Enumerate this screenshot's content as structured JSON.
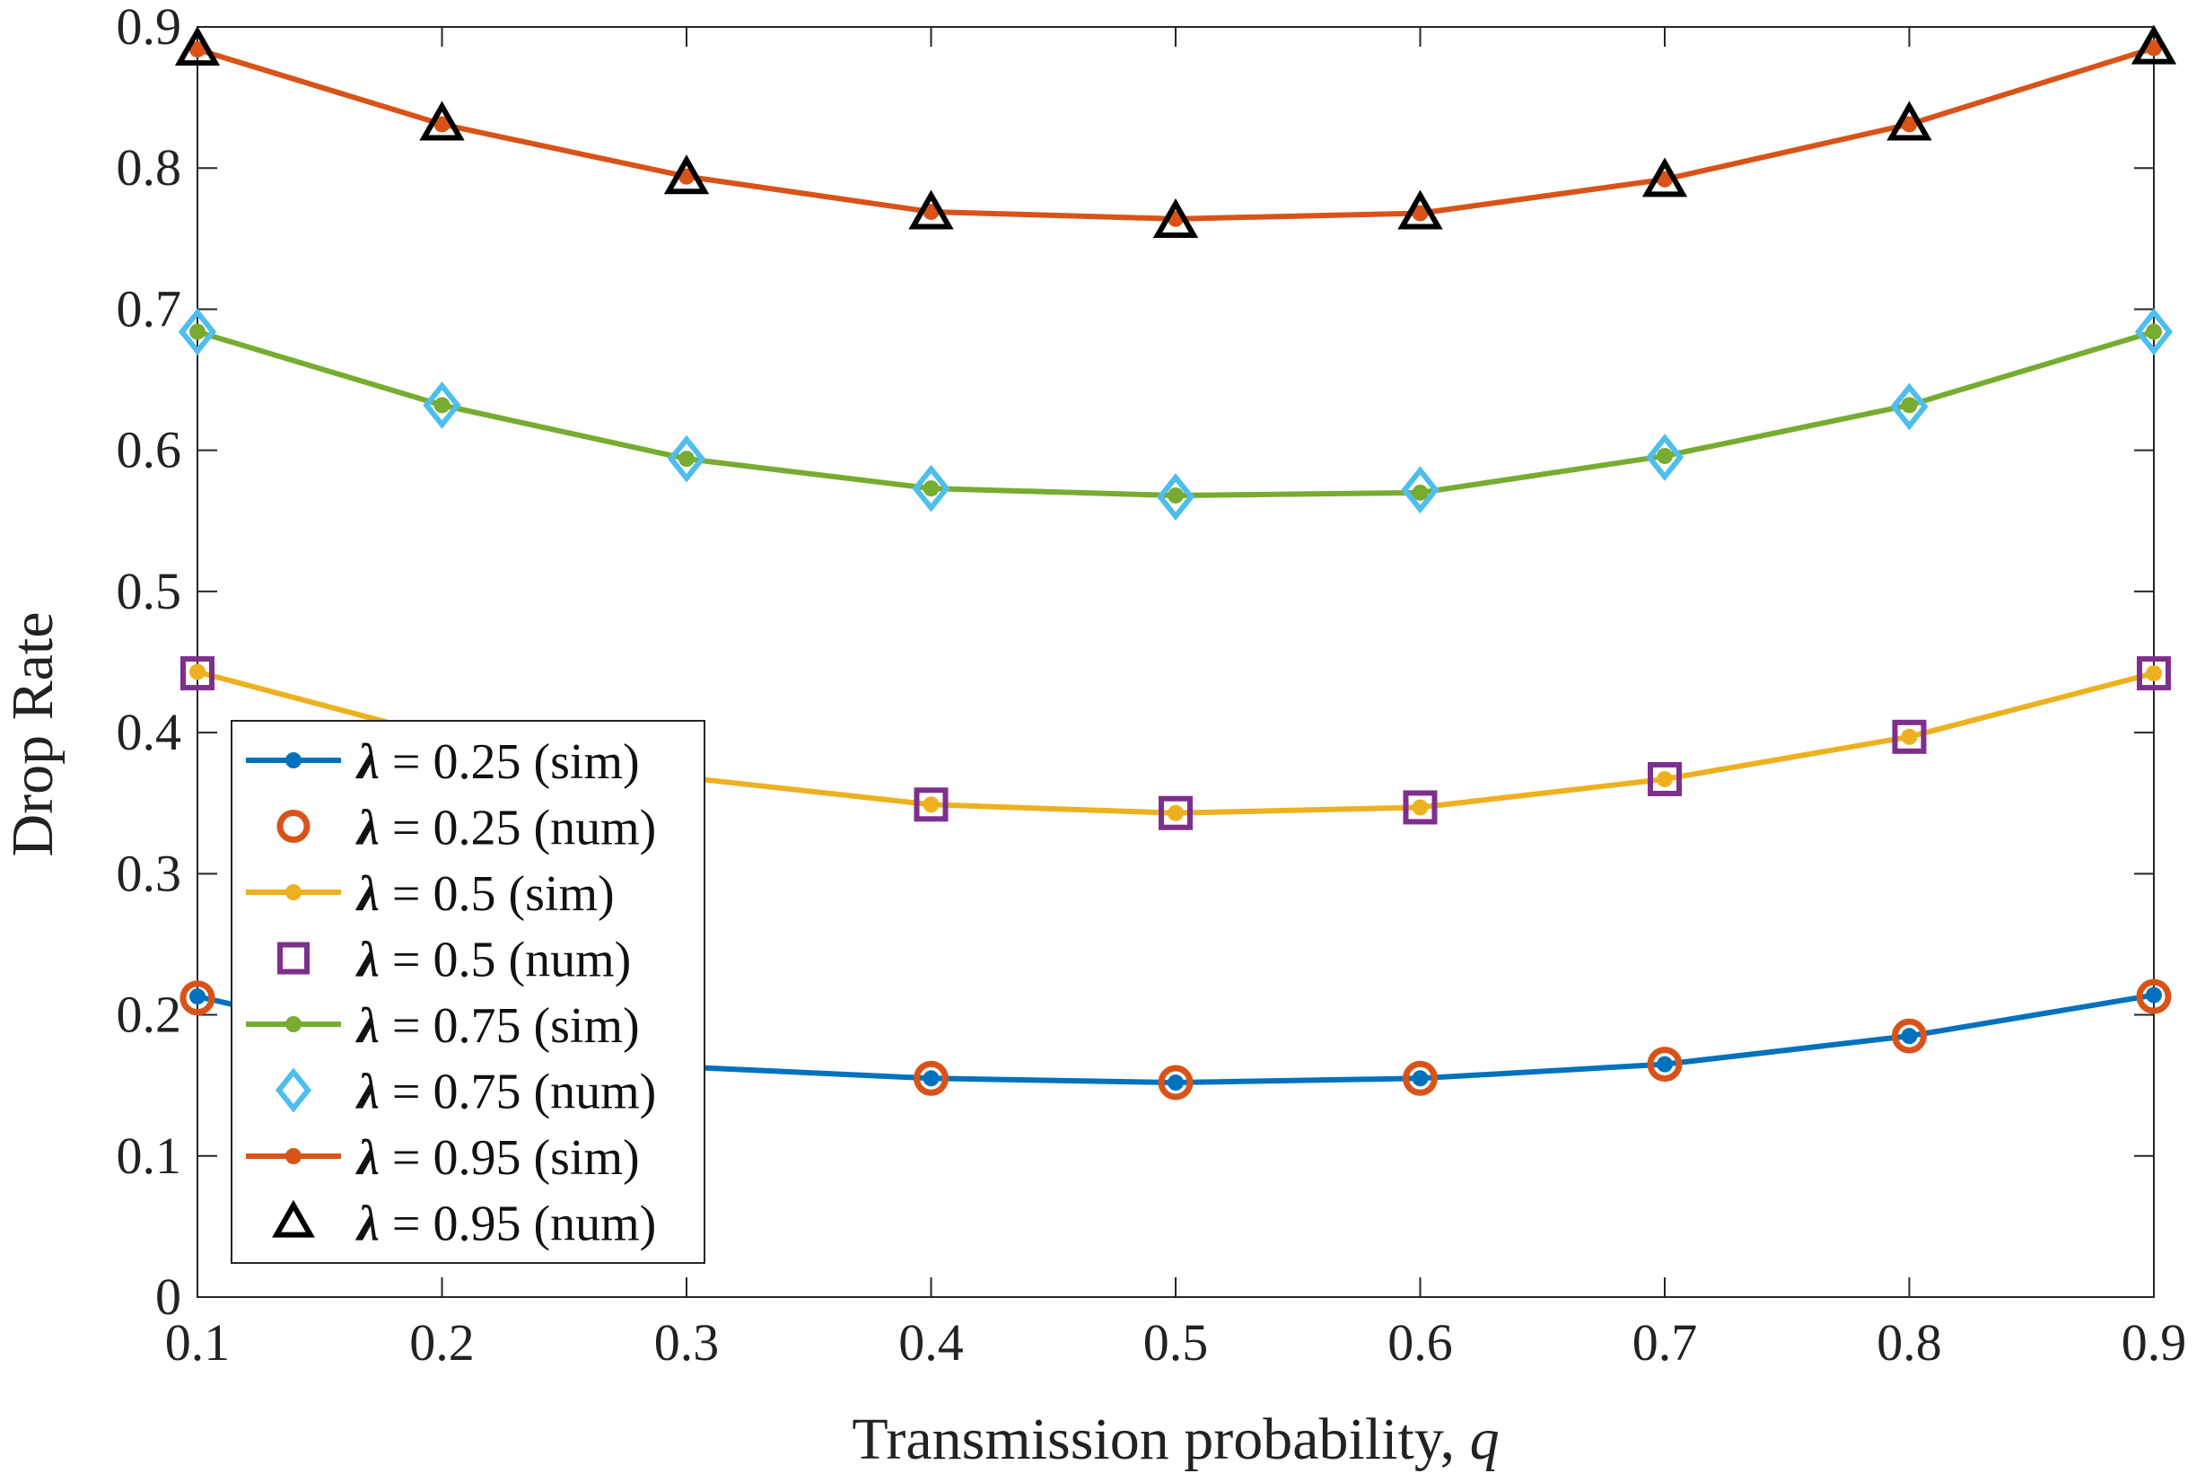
{
  "chart_data": {
    "type": "line",
    "title": "",
    "xlabel": "Transmission probability, ",
    "xlabel_var": "q",
    "ylabel": "Drop Rate",
    "x": [
      0.1,
      0.2,
      0.3,
      0.4,
      0.5,
      0.6,
      0.7,
      0.8,
      0.9
    ],
    "xlim": [
      0.1,
      0.9
    ],
    "ylim": [
      0,
      0.9
    ],
    "xticks": [
      "0.1",
      "0.2",
      "0.3",
      "0.4",
      "0.5",
      "0.6",
      "0.7",
      "0.8",
      "0.9"
    ],
    "yticks": [
      "0",
      "0.1",
      "0.2",
      "0.3",
      "0.4",
      "0.5",
      "0.6",
      "0.7",
      "0.8",
      "0.9"
    ],
    "legend_placement": "lower-left",
    "series": [
      {
        "name": "λ = 0.25 (sim)",
        "kind": "sim",
        "color": "#0072BD",
        "values": [
          0.213,
          0.174,
          0.163,
          0.155,
          0.152,
          0.155,
          0.165,
          0.185,
          0.214
        ]
      },
      {
        "name": "λ = 0.25 (num)",
        "kind": "num",
        "marker": "circle",
        "color": "#D95319",
        "values": [
          0.212,
          0.173,
          0.163,
          0.155,
          0.152,
          0.155,
          0.165,
          0.185,
          0.213
        ]
      },
      {
        "name": "λ = 0.5 (sim)",
        "kind": "sim",
        "color": "#EDB120",
        "values": [
          0.443,
          0.397,
          0.368,
          0.349,
          0.343,
          0.347,
          0.367,
          0.397,
          0.442
        ]
      },
      {
        "name": "λ = 0.5 (num)",
        "kind": "num",
        "marker": "square",
        "color": "#7E2F8E",
        "values": [
          0.442,
          0.396,
          0.366,
          0.349,
          0.343,
          0.347,
          0.367,
          0.397,
          0.442
        ]
      },
      {
        "name": "λ = 0.75 (sim)",
        "kind": "sim",
        "color": "#77AC30",
        "values": [
          0.684,
          0.632,
          0.594,
          0.573,
          0.568,
          0.57,
          0.596,
          0.632,
          0.684
        ]
      },
      {
        "name": "λ = 0.75 (num)",
        "kind": "num",
        "marker": "diamond",
        "color": "#4DBEEE",
        "values": [
          0.684,
          0.632,
          0.594,
          0.573,
          0.567,
          0.572,
          0.595,
          0.631,
          0.684
        ]
      },
      {
        "name": "λ = 0.95 (sim)",
        "kind": "sim",
        "color": "#D95319",
        "values": [
          0.884,
          0.831,
          0.794,
          0.769,
          0.764,
          0.768,
          0.792,
          0.831,
          0.885
        ]
      },
      {
        "name": "λ = 0.95 (num)",
        "kind": "num",
        "marker": "triangle",
        "color": "#000000",
        "values": [
          0.884,
          0.831,
          0.793,
          0.768,
          0.762,
          0.768,
          0.791,
          0.831,
          0.885
        ]
      }
    ],
    "legend": [
      {
        "lambda": "λ",
        "rest": " = 0.25 (sim)"
      },
      {
        "lambda": "λ",
        "rest": " = 0.25 (num)"
      },
      {
        "lambda": "λ",
        "rest": " = 0.5 (sim)"
      },
      {
        "lambda": "λ",
        "rest": " = 0.5 (num)"
      },
      {
        "lambda": "λ",
        "rest": " = 0.75 (sim)"
      },
      {
        "lambda": "λ",
        "rest": " = 0.75 (num)"
      },
      {
        "lambda": "λ",
        "rest": " = 0.95 (sim)"
      },
      {
        "lambda": "λ",
        "rest": " = 0.95 (num)"
      }
    ]
  }
}
